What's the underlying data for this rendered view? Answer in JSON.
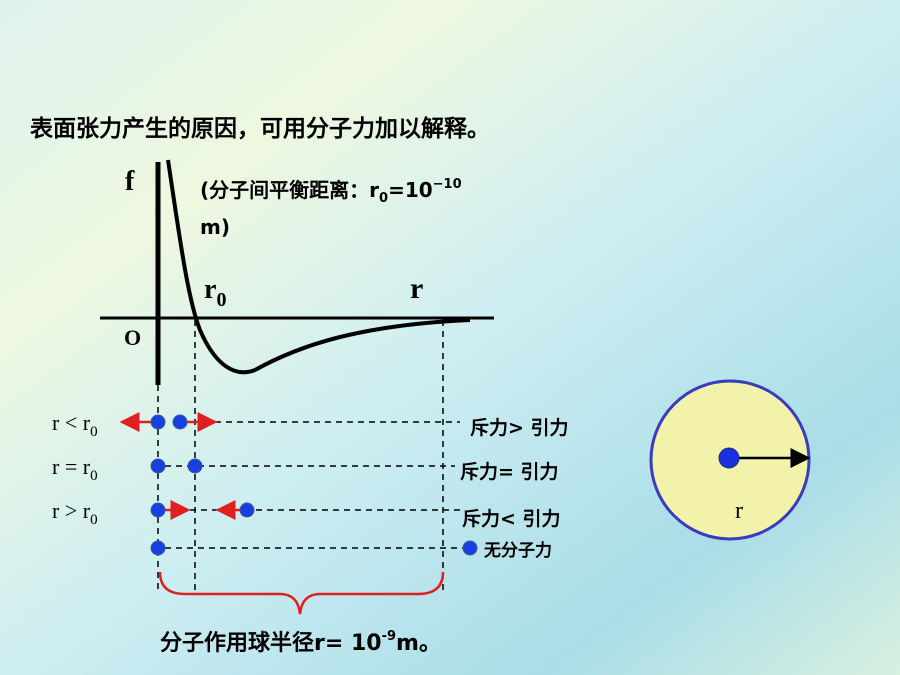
{
  "heading": "表面张力产生的原因，可用分子力加以解释。",
  "graph": {
    "y_axis_label": "f",
    "origin_label": "O",
    "r0_label": {
      "base": "r",
      "sub": "0"
    },
    "r_label": "r"
  },
  "note": {
    "prefix": "(分子间平衡距离：",
    "symbol": "r",
    "sub": "0",
    "eq": "=10",
    "exp": "−10",
    "unit": "m)"
  },
  "cases": [
    {
      "left": "r < r",
      "sub": "0",
      "result": "斥力> 引力"
    },
    {
      "left": "r = r",
      "sub": "0",
      "result": "斥力= 引力"
    },
    {
      "left": "r > r",
      "sub": "0",
      "result": "斥力< 引力"
    },
    {
      "result": "无分子力"
    }
  ],
  "radius_label": {
    "prefix": "分子作用球半径r= 10",
    "exp": "-9",
    "suffix": "m。"
  },
  "circle_label": "r"
}
